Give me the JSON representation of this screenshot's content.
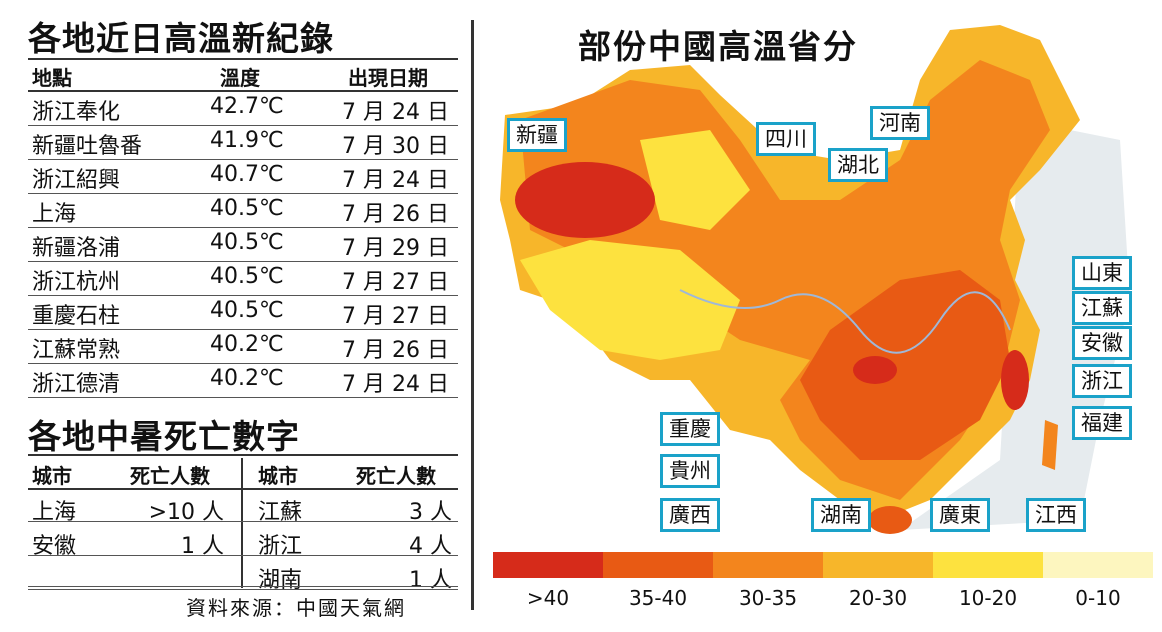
{
  "records": {
    "title": "各地近日高溫新紀錄",
    "headers": [
      "地點",
      "溫度",
      "出現日期"
    ],
    "rows": [
      {
        "place": "浙江奉化",
        "temp": "42.7℃",
        "date": "7 月 24 日"
      },
      {
        "place": "新疆吐魯番",
        "temp": "41.9℃",
        "date": "7 月 30 日"
      },
      {
        "place": "浙江紹興",
        "temp": "40.7℃",
        "date": "7 月 24 日"
      },
      {
        "place": "上海",
        "temp": "40.5℃",
        "date": "7 月 26 日"
      },
      {
        "place": "新疆洛浦",
        "temp": "40.5℃",
        "date": "7 月 29 日"
      },
      {
        "place": "浙江杭州",
        "temp": "40.5℃",
        "date": "7 月 27 日"
      },
      {
        "place": "重慶石柱",
        "temp": "40.5℃",
        "date": "7 月 27 日"
      },
      {
        "place": "江蘇常熟",
        "temp": "40.2℃",
        "date": "7 月 26 日"
      },
      {
        "place": "浙江德清",
        "temp": "40.2℃",
        "date": "7 月 24 日"
      }
    ]
  },
  "deaths": {
    "title": "各地中暑死亡數字",
    "headers": {
      "city": "城市",
      "count": "死亡人數"
    },
    "left": [
      {
        "city": "上海",
        "count": ">10 人"
      },
      {
        "city": "安徽",
        "count": "1 人"
      }
    ],
    "right": [
      {
        "city": "江蘇",
        "count": "3 人"
      },
      {
        "city": "浙江",
        "count": "4 人"
      },
      {
        "city": "湖南",
        "count": "1 人"
      }
    ]
  },
  "source": "資料來源：中國天氣網",
  "map": {
    "title": "部份中國高溫省分",
    "labels": {
      "xinjiang": "新疆",
      "sichuan": "四川",
      "hubei": "湖北",
      "henan": "河南",
      "shandong": "山東",
      "jiangsu": "江蘇",
      "anhui": "安徽",
      "zhejiang": "浙江",
      "fujian": "福建",
      "chongqing": "重慶",
      "guizhou": "貴州",
      "guangxi": "廣西",
      "hunan": "湖南",
      "guangdong": "廣東",
      "jiangxi": "江西"
    }
  },
  "legend": [
    {
      "label": ">40",
      "color": "#d62b1a"
    },
    {
      "label": "35-40",
      "color": "#e85a14"
    },
    {
      "label": "30-35",
      "color": "#f3851d"
    },
    {
      "label": "20-30",
      "color": "#f7b62a"
    },
    {
      "label": "10-20",
      "color": "#fde23f"
    },
    {
      "label": "0-10",
      "color": "#fdf6bf"
    }
  ]
}
